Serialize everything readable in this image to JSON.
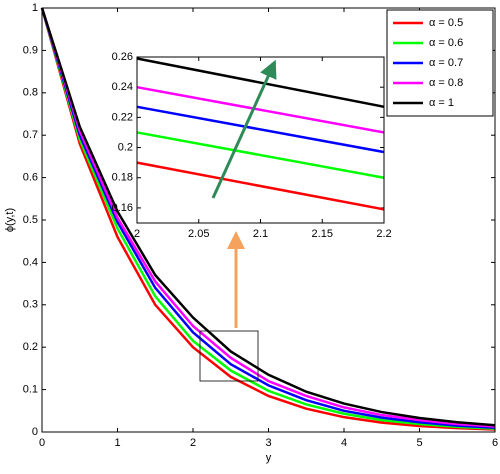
{
  "chart_data": [
    {
      "type": "line",
      "x_label": "y",
      "y_label": "ϕ(y,t)",
      "x": [
        0,
        0.5,
        1,
        1.5,
        2,
        2.5,
        3,
        3.5,
        4,
        4.5,
        5,
        5.5,
        6
      ],
      "series": [
        {
          "name": "α = 0.5",
          "color": "#ff0000",
          "values": [
            1,
            0.68,
            0.46,
            0.3,
            0.2,
            0.13,
            0.085,
            0.055,
            0.035,
            0.022,
            0.014,
            0.009,
            0.006
          ]
        },
        {
          "name": "α = 0.6",
          "color": "#00ff00",
          "values": [
            1,
            0.69,
            0.48,
            0.32,
            0.215,
            0.145,
            0.097,
            0.065,
            0.043,
            0.028,
            0.019,
            0.012,
            0.008
          ]
        },
        {
          "name": "α = 0.7",
          "color": "#0000ff",
          "values": [
            1,
            0.7,
            0.495,
            0.34,
            0.235,
            0.16,
            0.11,
            0.075,
            0.05,
            0.034,
            0.023,
            0.015,
            0.01
          ]
        },
        {
          "name": "α = 0.8",
          "color": "#ff00ff",
          "values": [
            1,
            0.71,
            0.505,
            0.355,
            0.25,
            0.175,
            0.12,
            0.085,
            0.058,
            0.04,
            0.028,
            0.019,
            0.013
          ]
        },
        {
          "name": "α = 1",
          "color": "#000000",
          "values": [
            1,
            0.72,
            0.52,
            0.37,
            0.27,
            0.19,
            0.135,
            0.095,
            0.067,
            0.047,
            0.033,
            0.023,
            0.016
          ]
        }
      ],
      "xlim": [
        0,
        6
      ],
      "ylim": [
        0,
        1
      ],
      "xticks": [
        0,
        1,
        2,
        3,
        4,
        5,
        6
      ],
      "yticks": [
        0,
        0.1,
        0.2,
        0.3,
        0.4,
        0.5,
        0.6,
        0.7,
        0.8,
        0.9,
        1
      ],
      "legend": "upper right"
    },
    {
      "type": "line",
      "x": [
        2,
        2.2
      ],
      "series": [
        {
          "color": "#ff0000",
          "values": [
            0.19,
            0.159
          ]
        },
        {
          "color": "#00ff00",
          "values": [
            0.21,
            0.18
          ]
        },
        {
          "color": "#0000ff",
          "values": [
            0.227,
            0.197
          ]
        },
        {
          "color": "#ff00ff",
          "values": [
            0.24,
            0.21
          ]
        },
        {
          "color": "#000000",
          "values": [
            0.259,
            0.227
          ]
        }
      ],
      "xlim": [
        2,
        2.2
      ],
      "ylim": [
        0.15,
        0.26
      ],
      "xticks": [
        2,
        2.05,
        2.1,
        2.15,
        2.2
      ],
      "yticks": [
        0.16,
        0.18,
        0.2,
        0.22,
        0.24,
        0.26
      ]
    }
  ]
}
